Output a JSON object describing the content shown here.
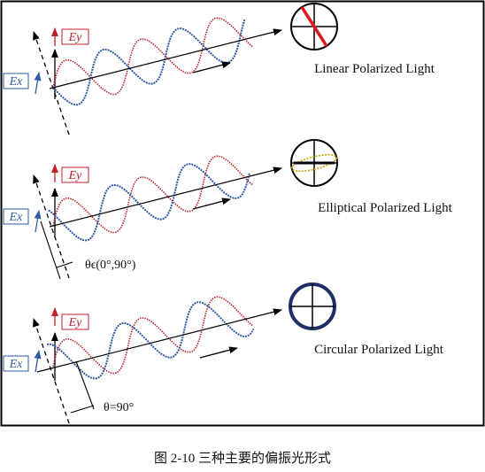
{
  "caption": "图 2-10  三种主要的偏振光形式",
  "colors": {
    "ex": "#2f5aa6",
    "ey": "#c0202a",
    "frame": "#000000",
    "circle_thick": "#1d2f66",
    "ellipse_trace": "#c8a818"
  },
  "panels": [
    {
      "id": "linear",
      "title": "Linear Polarized Light",
      "ex_label": "Ex",
      "ey_label": "Ey",
      "angle_label": "",
      "phase": 0
    },
    {
      "id": "elliptical",
      "title": "Elliptical Polarized Light",
      "ex_label": "Ex",
      "ey_label": "Ey",
      "angle_label": "θϵ(0°,90°)",
      "phase": 45
    },
    {
      "id": "circular",
      "title": "Circular Polarized Light",
      "ex_label": "Ex",
      "ey_label": "Ey",
      "angle_label": "θ=90°",
      "phase": 90
    }
  ]
}
